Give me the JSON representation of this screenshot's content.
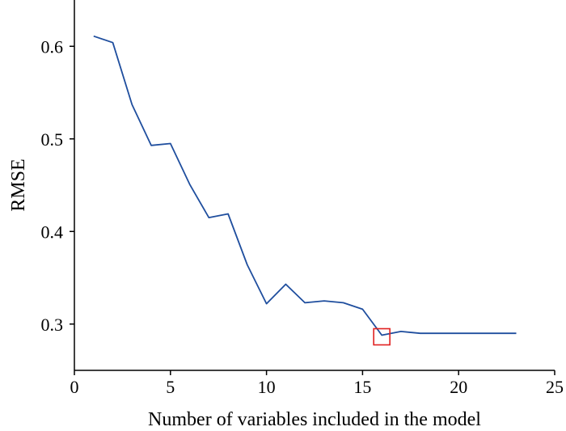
{
  "chart_data": {
    "type": "line",
    "xlabel": "Number of variables included in the model",
    "ylabel": "RMSE",
    "xlim": [
      0,
      25
    ],
    "ylim": [
      0.25,
      0.65
    ],
    "x_ticks": [
      0,
      5,
      10,
      15,
      20,
      25
    ],
    "x_tick_labels": [
      "0",
      "5",
      "10",
      "15",
      "20",
      "25"
    ],
    "y_ticks": [
      0.3,
      0.4,
      0.5,
      0.6
    ],
    "y_tick_labels": [
      "0.3",
      "0.4",
      "0.5",
      "0.6"
    ],
    "grid": false,
    "series": [
      {
        "color": "#1f4e9e",
        "x": [
          1,
          2,
          3,
          4,
          5,
          6,
          7,
          8,
          9,
          10,
          11,
          12,
          13,
          14,
          15,
          16,
          17,
          18,
          19,
          20,
          21,
          22,
          23
        ],
        "y": [
          0.611,
          0.604,
          0.537,
          0.493,
          0.495,
          0.451,
          0.415,
          0.419,
          0.364,
          0.322,
          0.343,
          0.323,
          0.325,
          0.323,
          0.316,
          0.288,
          0.292,
          0.29,
          0.29,
          0.29,
          0.29,
          0.29,
          0.29
        ]
      }
    ],
    "highlight": {
      "x": 16,
      "y": 0.288,
      "color": "#e02020",
      "shape": "square"
    }
  }
}
